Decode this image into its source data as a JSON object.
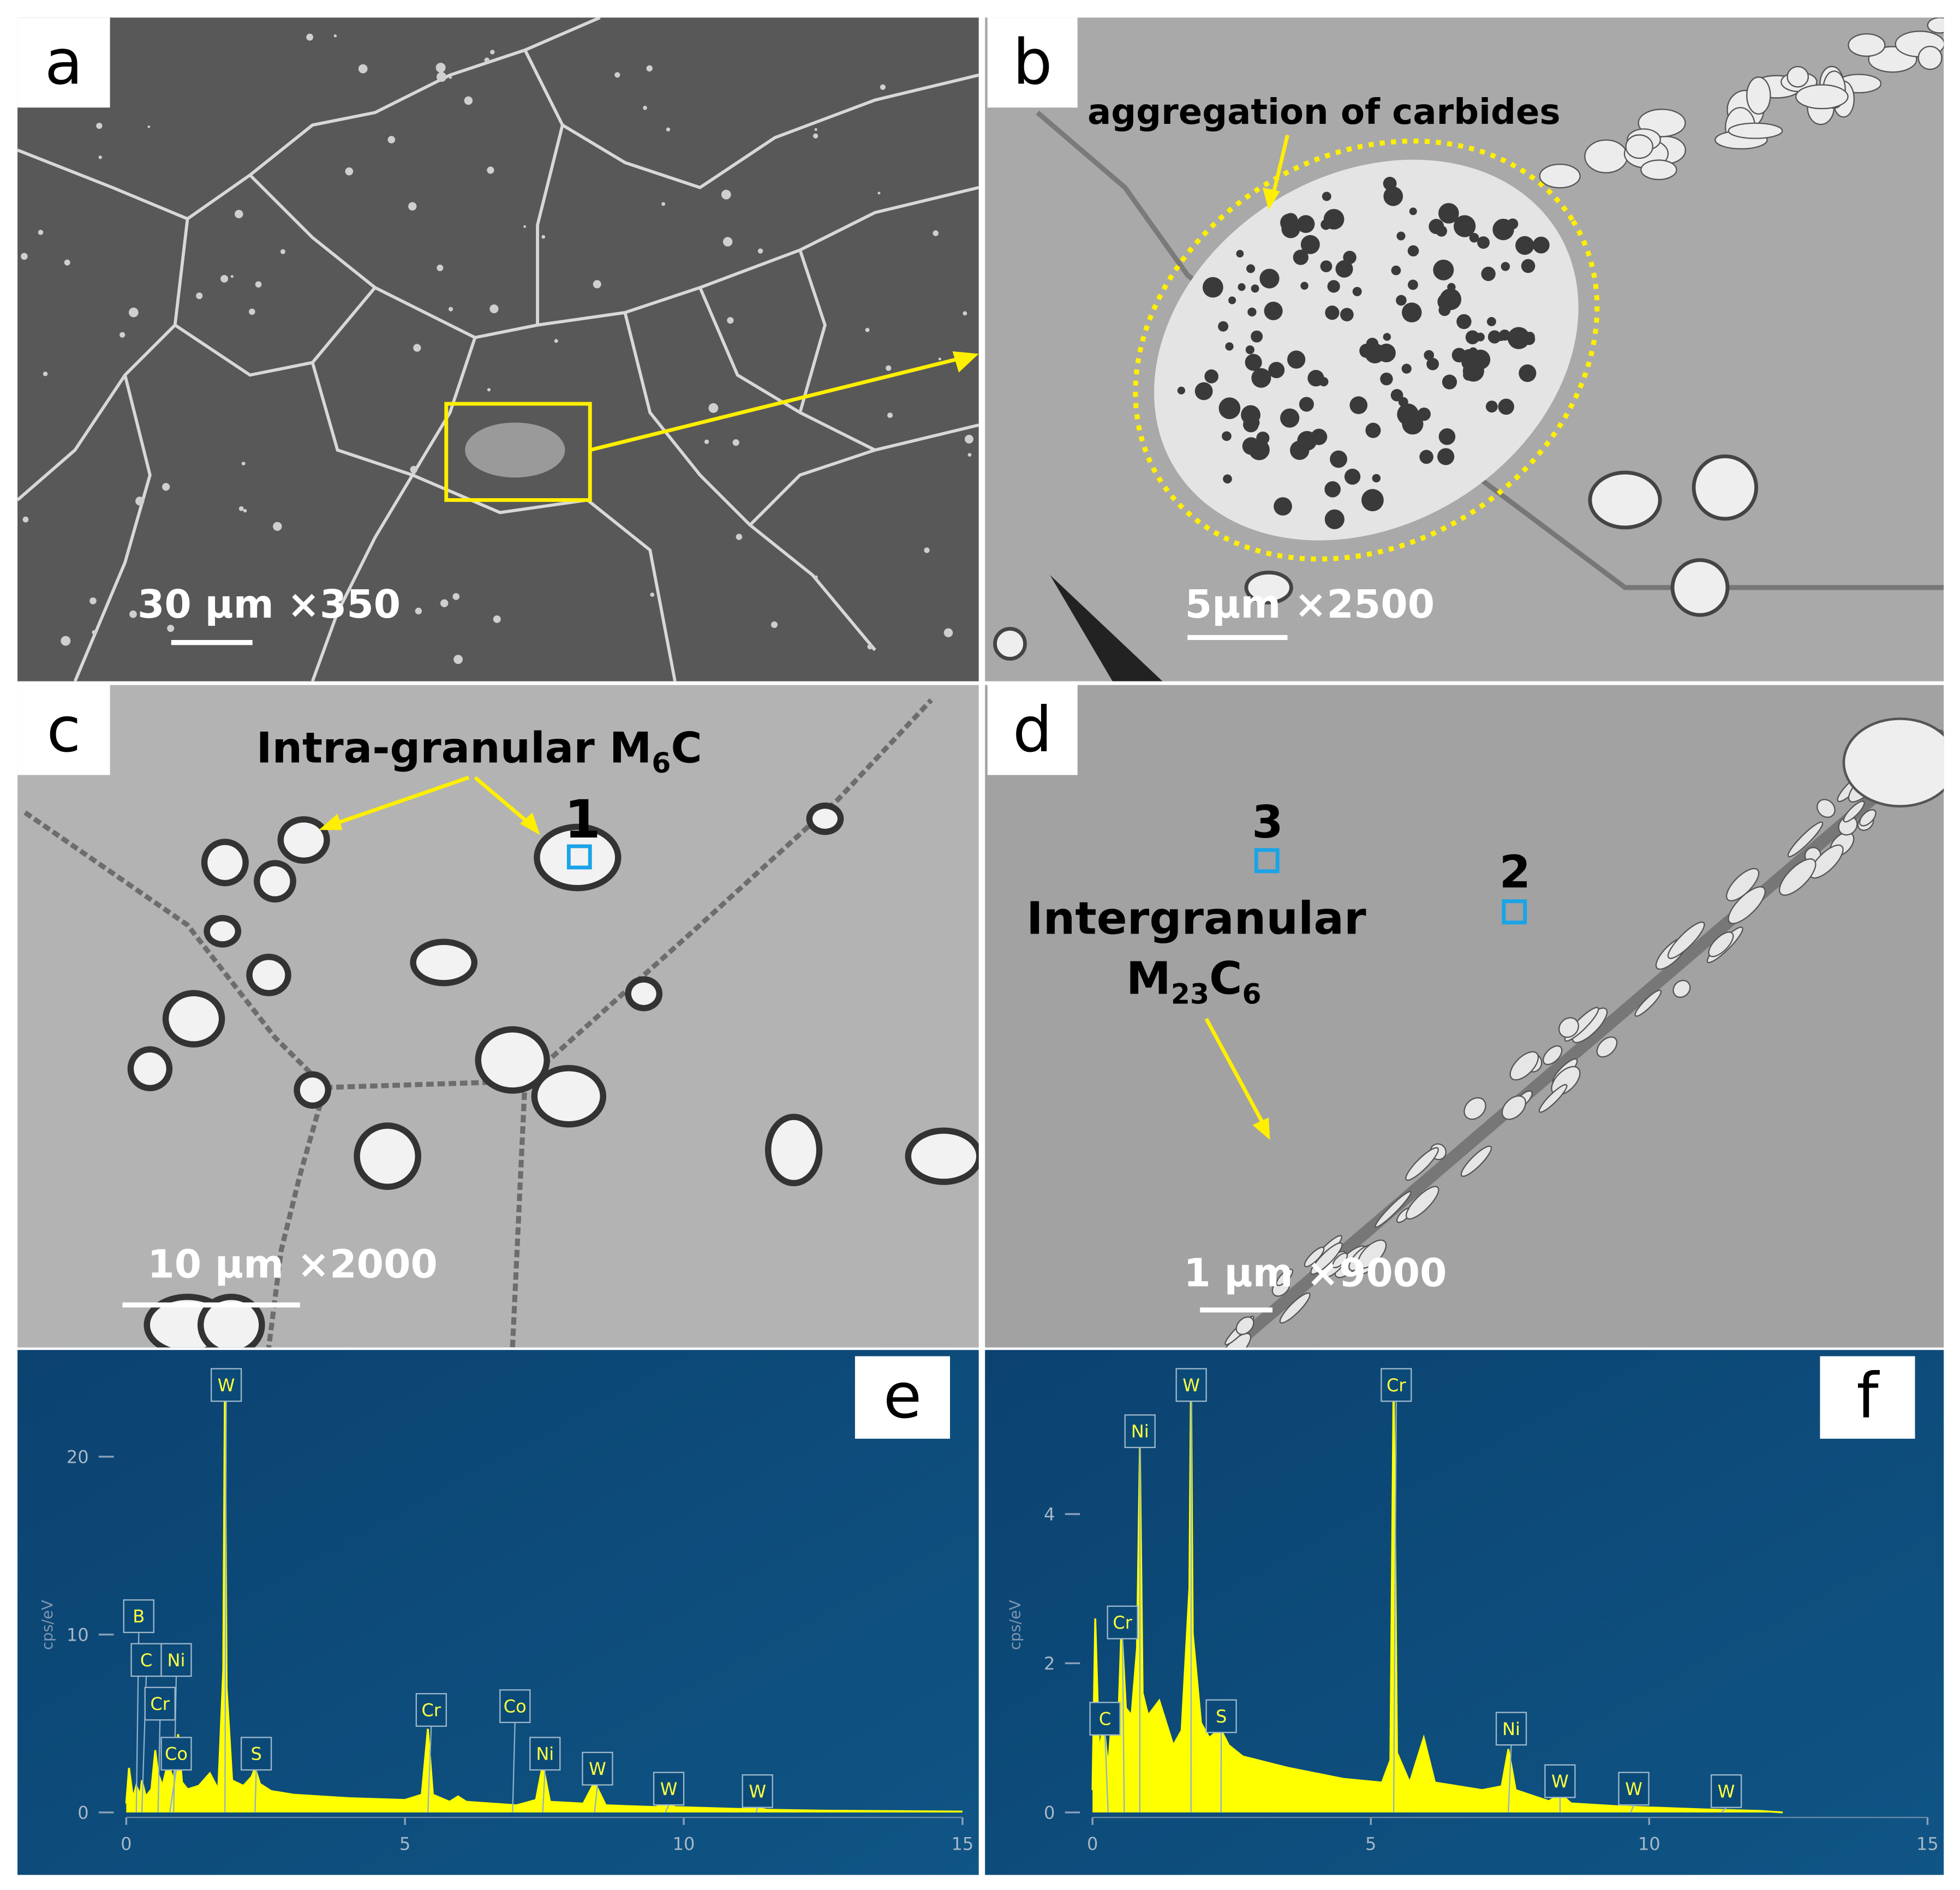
{
  "panels": [
    {
      "label": "a",
      "scale": "30 µm ×350"
    },
    {
      "label": "b",
      "scale": "5µm ×2500",
      "annotation": "aggregation of carbides"
    },
    {
      "label": "c",
      "scale": "10 µm ×2000",
      "annotation": [
        "Intra-granular M",
        "6",
        "C"
      ],
      "points": [
        "1"
      ]
    },
    {
      "label": "d",
      "scale": "1 µm ×9000",
      "annotation": [
        "Intergranular",
        "M",
        "23",
        "C",
        "6"
      ],
      "points": [
        "3",
        "2"
      ]
    }
  ],
  "chart_data": [
    {
      "type": "line",
      "label": "e",
      "y_label": "cps/eV",
      "xlim": [
        0,
        15
      ],
      "xticks": [
        0,
        5,
        10,
        15
      ],
      "ylim": [
        0,
        26
      ],
      "yticks": [
        0,
        10,
        20
      ],
      "series": [
        {
          "color": "#ffff00",
          "x": [
            0,
            0.05,
            0.12,
            0.18,
            0.25,
            0.28,
            0.35,
            0.45,
            0.52,
            0.57,
            0.65,
            0.75,
            0.85,
            0.93,
            1.0,
            1.1,
            1.3,
            1.5,
            1.65,
            1.74,
            1.77,
            1.8,
            1.9,
            2.1,
            2.25,
            2.31,
            2.4,
            2.6,
            3,
            4,
            5,
            5.3,
            5.41,
            5.5,
            5.8,
            5.95,
            6.1,
            7,
            7.35,
            7.47,
            7.6,
            8.2,
            8.4,
            8.6,
            9.5,
            9.67,
            9.85,
            11,
            11.3,
            11.5,
            12.5,
            15
          ],
          "values": [
            0.5,
            2.5,
            0.8,
            1.5,
            1,
            1.8,
            0.9,
            1.3,
            3.5,
            2.2,
            1.5,
            2.8,
            1.8,
            4.4,
            1.7,
            1.3,
            1.5,
            2.2,
            1.3,
            8,
            24,
            7,
            1.8,
            1.5,
            2,
            2.5,
            1.6,
            1.2,
            1.0,
            0.8,
            0.7,
            1.0,
            4.7,
            1.0,
            0.6,
            0.9,
            0.6,
            0.4,
            0.7,
            2.7,
            0.6,
            0.5,
            1.7,
            0.4,
            0.3,
            0.5,
            0.3,
            0.2,
            0.25,
            0.15,
            0.1,
            0.05
          ]
        }
      ],
      "peaks": [
        {
          "text": "B",
          "x": 0.18
        },
        {
          "text": "C",
          "x": 0.28
        },
        {
          "text": "Ni",
          "x": 0.85
        },
        {
          "text": "Cr",
          "x": 0.57
        },
        {
          "text": "Co",
          "x": 0.78
        },
        {
          "text": "W",
          "x": 1.77
        },
        {
          "text": "S",
          "x": 2.31
        },
        {
          "text": "Cr",
          "x": 5.41
        },
        {
          "text": "Co",
          "x": 6.93
        },
        {
          "text": "Ni",
          "x": 7.47
        },
        {
          "text": "W",
          "x": 8.4
        },
        {
          "text": "W",
          "x": 9.67
        },
        {
          "text": "W",
          "x": 11.3
        }
      ]
    },
    {
      "type": "line",
      "label": "f",
      "y_label": "cps/eV",
      "xlim": [
        0,
        15
      ],
      "xticks": [
        0,
        5,
        10,
        15
      ],
      "ylim": [
        0,
        6.2
      ],
      "yticks": [
        0,
        2,
        4
      ],
      "series": [
        {
          "color": "#ffff00",
          "x": [
            0,
            0.05,
            0.12,
            0.2,
            0.28,
            0.35,
            0.45,
            0.52,
            0.6,
            0.7,
            0.8,
            0.85,
            0.9,
            1.0,
            1.2,
            1.45,
            1.6,
            1.74,
            1.77,
            1.8,
            1.95,
            2.1,
            2.25,
            2.31,
            2.45,
            2.7,
            3.5,
            4.5,
            5.2,
            5.35,
            5.41,
            5.47,
            5.7,
            5.95,
            6.15,
            7,
            7.35,
            7.47,
            7.6,
            8.2,
            8.4,
            8.6,
            9.5,
            11,
            12,
            12.4
          ],
          "values": [
            0.3,
            2.6,
            0.8,
            1.2,
            0.6,
            1.3,
            0.9,
            2.5,
            1.4,
            1.3,
            2.2,
            4.9,
            1.6,
            1.3,
            1.5,
            0.9,
            1.1,
            3,
            5.86,
            2.4,
            1.2,
            1.0,
            1.1,
            1.1,
            0.9,
            0.75,
            0.6,
            0.45,
            0.4,
            0.7,
            5.86,
            0.8,
            0.4,
            1.0,
            0.4,
            0.3,
            0.35,
            0.85,
            0.3,
            0.15,
            0.25,
            0.12,
            0.08,
            0.04,
            0.02,
            0
          ]
        }
      ],
      "peaks": [
        {
          "text": "C",
          "x": 0.28
        },
        {
          "text": "Cr",
          "x": 0.57
        },
        {
          "text": "Ni",
          "x": 0.85
        },
        {
          "text": "W",
          "x": 1.77
        },
        {
          "text": "S",
          "x": 2.31
        },
        {
          "text": "Cr",
          "x": 5.41
        },
        {
          "text": "Ni",
          "x": 7.47
        },
        {
          "text": "W",
          "x": 8.4
        },
        {
          "text": "W",
          "x": 9.67
        },
        {
          "text": "W",
          "x": 11.3
        }
      ]
    }
  ]
}
